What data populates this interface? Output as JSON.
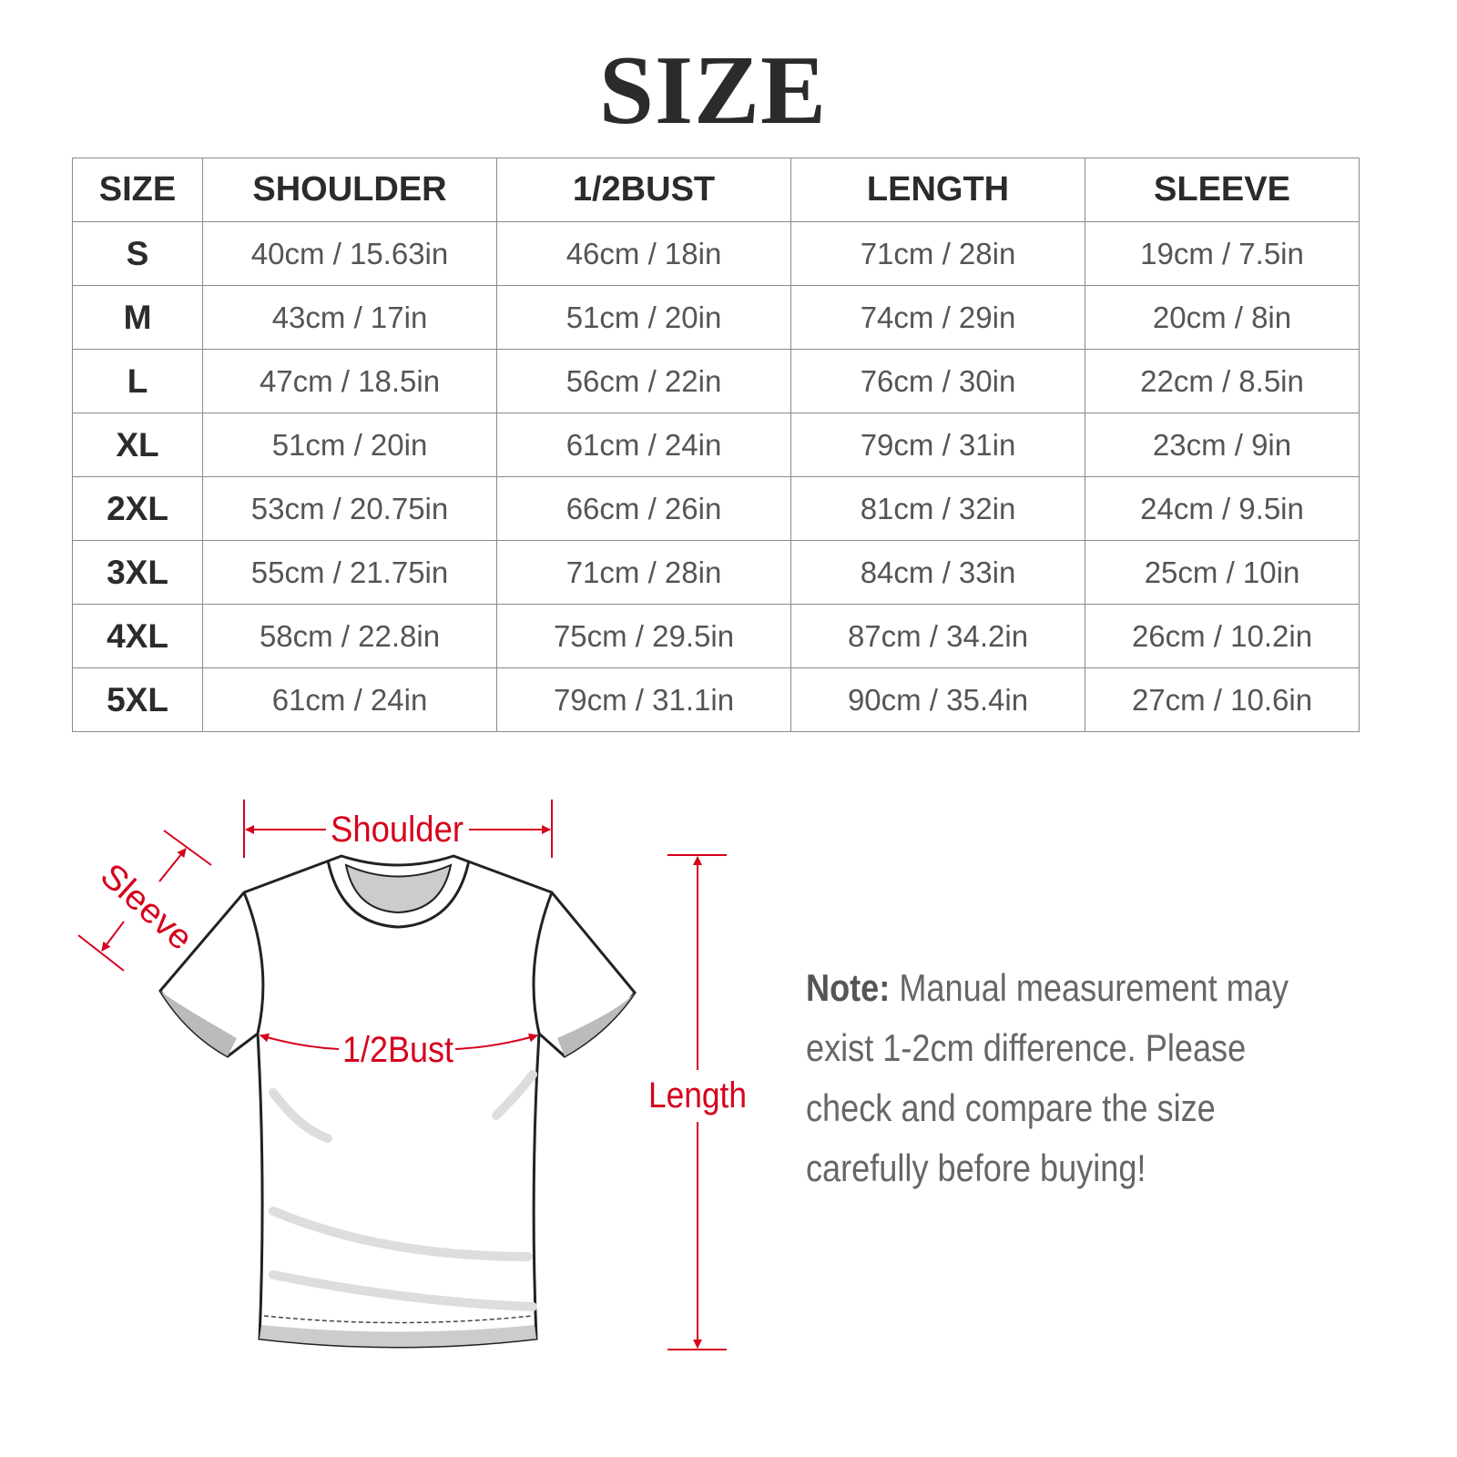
{
  "title": "SIZE",
  "table": {
    "headers": [
      "SIZE",
      "SHOULDER",
      "1/2BUST",
      "LENGTH",
      "SLEEVE"
    ],
    "rows": [
      [
        "S",
        "40cm / 15.63in",
        "46cm / 18in",
        "71cm / 28in",
        "19cm / 7.5in"
      ],
      [
        "M",
        "43cm / 17in",
        "51cm / 20in",
        "74cm / 29in",
        "20cm / 8in"
      ],
      [
        "L",
        "47cm / 18.5in",
        "56cm / 22in",
        "76cm / 30in",
        "22cm / 8.5in"
      ],
      [
        "XL",
        "51cm / 20in",
        "61cm / 24in",
        "79cm / 31in",
        "23cm / 9in"
      ],
      [
        "2XL",
        "53cm / 20.75in",
        "66cm / 26in",
        "81cm / 32in",
        "24cm / 9.5in"
      ],
      [
        "3XL",
        "55cm / 21.75in",
        "71cm / 28in",
        "84cm / 33in",
        "25cm / 10in"
      ],
      [
        "4XL",
        "58cm / 22.8in",
        "75cm / 29.5in",
        "87cm / 34.2in",
        "26cm / 10.2in"
      ],
      [
        "5XL",
        "61cm / 24in",
        "79cm / 31.1in",
        "90cm / 35.4in",
        "27cm / 10.6in"
      ]
    ]
  },
  "diagram": {
    "shoulder_label": "Shoulder",
    "sleeve_label": "Sleeve",
    "bust_label": "1/2Bust",
    "length_label": "Length",
    "accent_color": "#d6001c"
  },
  "note": {
    "label": "Note:",
    "lines": [
      " Manual measurement may",
      "exist 1-2cm difference. Please",
      "check and compare the size",
      "carefully before buying!"
    ]
  }
}
